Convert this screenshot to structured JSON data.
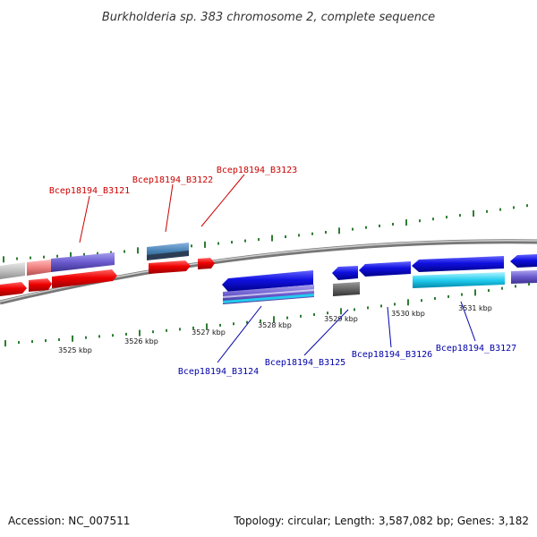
{
  "title": "Burkholderia sp. 383 chromosome 2, complete sequence",
  "footer": {
    "accession": "Accession: NC_007511",
    "summary": "Topology: circular; Length: 3,587,082 bp; Genes: 3,182"
  },
  "colors": {
    "forward_label": "#cc0000",
    "reverse_label": "#0000aa",
    "tick": "#2e7d32",
    "backbone": "#888888"
  },
  "scale_labels": [
    "3525 kbp",
    "3526 kbp",
    "3527 kbp",
    "3528 kbp",
    "3529 kbp",
    "3530 kbp",
    "3531 kbp"
  ],
  "gene_labels": {
    "forward": [
      "Bcep18194_B3121",
      "Bcep18194_B3122",
      "Bcep18194_B3123"
    ],
    "reverse": [
      "Bcep18194_B3124",
      "Bcep18194_B3125",
      "Bcep18194_B3126",
      "Bcep18194_B3127"
    ]
  }
}
